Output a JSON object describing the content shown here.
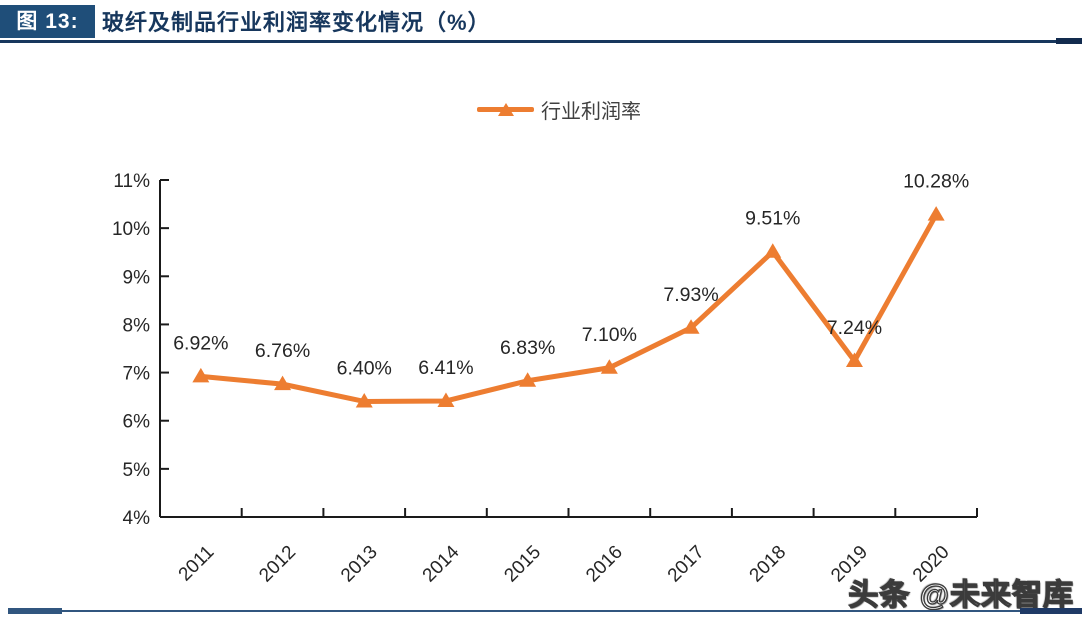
{
  "header": {
    "figure_label": "图 13:",
    "title": "玻纤及制品行业利润率变化情况（%）"
  },
  "legend": {
    "label": "行业利润率"
  },
  "watermark": "头条 @未来智库",
  "colors": {
    "series_orange": "#ED7D31",
    "header_box_navy": "#1F4E79",
    "title_navy": "#17375D",
    "footer_blue": "#31567F",
    "axis_line": "#1a1a1a",
    "tick_text": "#262626",
    "data_label_text": "#262626"
  },
  "chart_data": {
    "type": "line",
    "title": "玻纤及制品行业利润率变化情况（%）",
    "categories": [
      "2011",
      "2012",
      "2013",
      "2014",
      "2015",
      "2016",
      "2017",
      "2018",
      "2019",
      "2020"
    ],
    "series": [
      {
        "name": "行业利润率",
        "values": [
          6.92,
          6.76,
          6.4,
          6.41,
          6.83,
          7.1,
          7.93,
          9.51,
          7.24,
          10.28
        ]
      }
    ],
    "point_labels": [
      "6.92%",
      "6.76%",
      "6.40%",
      "6.41%",
      "6.83%",
      "7.10%",
      "7.93%",
      "9.51%",
      "7.24%",
      "10.28%"
    ],
    "y_ticks": [
      "4%",
      "5%",
      "6%",
      "7%",
      "8%",
      "9%",
      "10%",
      "11%"
    ],
    "ylim": [
      4,
      11
    ],
    "xlabel": "",
    "ylabel": "",
    "grid": false,
    "legend_position": "top-center",
    "marker": "triangle"
  }
}
